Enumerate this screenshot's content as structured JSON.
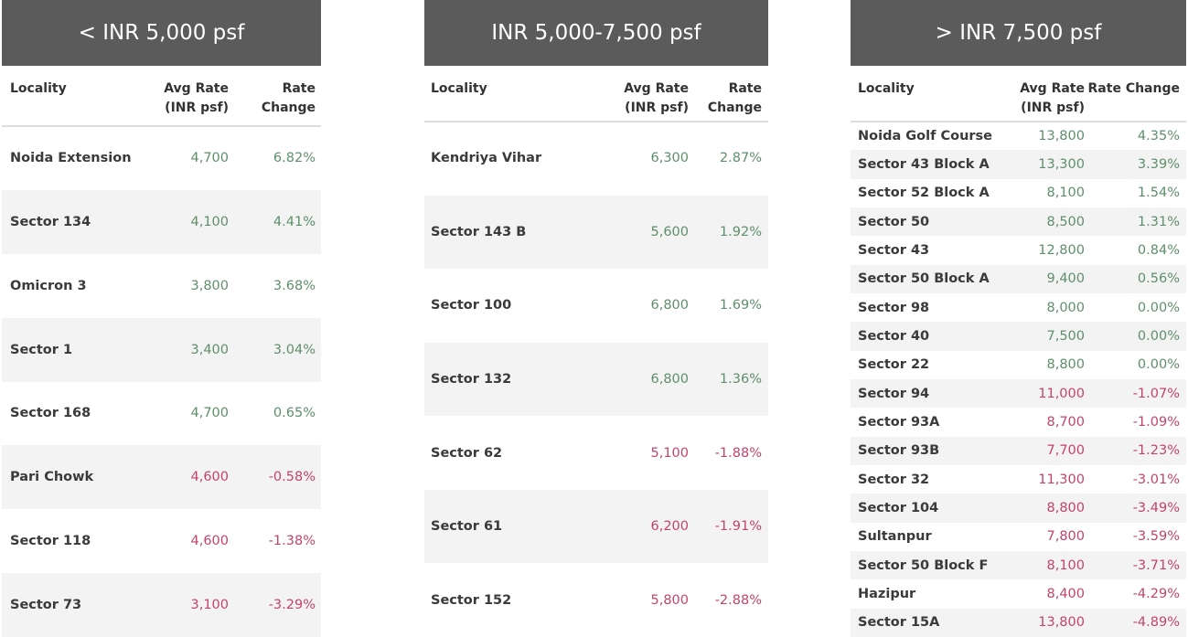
{
  "colors": {
    "positive": "#5e8f6a",
    "negative": "#c2446a",
    "header_bg": "#5b5b5b"
  },
  "columns": {
    "locality": "Locality",
    "avg_rate": "Avg Rate",
    "avg_rate_unit": "(INR psf)",
    "rate_change": "Rate",
    "rate_change_2": "Change",
    "rate_change_full": "Rate Change"
  },
  "panels": [
    {
      "title": "< INR 5,000 psf",
      "rows": [
        {
          "locality": "Noida Extension",
          "avg_rate": "4,700",
          "change": "6.82%"
        },
        {
          "locality": "Sector 134",
          "avg_rate": "4,100",
          "change": "4.41%"
        },
        {
          "locality": "Omicron 3",
          "avg_rate": "3,800",
          "change": "3.68%"
        },
        {
          "locality": "Sector 1",
          "avg_rate": "3,400",
          "change": "3.04%"
        },
        {
          "locality": "Sector 168",
          "avg_rate": "4,700",
          "change": "0.65%"
        },
        {
          "locality": "Pari Chowk",
          "avg_rate": "4,600",
          "change": "-0.58%"
        },
        {
          "locality": "Sector 118",
          "avg_rate": "4,600",
          "change": "-1.38%"
        },
        {
          "locality": "Sector 73",
          "avg_rate": "3,100",
          "change": "-3.29%"
        }
      ]
    },
    {
      "title": "INR 5,000-7,500 psf",
      "rows": [
        {
          "locality": "Kendriya Vihar",
          "avg_rate": "6,300",
          "change": "2.87%"
        },
        {
          "locality": "Sector 143 B",
          "avg_rate": "5,600",
          "change": "1.92%"
        },
        {
          "locality": "Sector 100",
          "avg_rate": "6,800",
          "change": "1.69%"
        },
        {
          "locality": "Sector 132",
          "avg_rate": "6,800",
          "change": "1.36%"
        },
        {
          "locality": "Sector 62",
          "avg_rate": "5,100",
          "change": "-1.88%"
        },
        {
          "locality": "Sector 61",
          "avg_rate": "6,200",
          "change": "-1.91%"
        },
        {
          "locality": "Sector 152",
          "avg_rate": "5,800",
          "change": "-2.88%"
        }
      ]
    },
    {
      "title": "> INR 7,500 psf",
      "rows": [
        {
          "locality": "Noida Golf Course",
          "avg_rate": "13,800",
          "change": "4.35%"
        },
        {
          "locality": "Sector 43 Block A",
          "avg_rate": "13,300",
          "change": "3.39%"
        },
        {
          "locality": "Sector 52 Block A",
          "avg_rate": "8,100",
          "change": "1.54%"
        },
        {
          "locality": "Sector 50",
          "avg_rate": "8,500",
          "change": "1.31%"
        },
        {
          "locality": "Sector 43",
          "avg_rate": "12,800",
          "change": "0.84%"
        },
        {
          "locality": "Sector 50 Block A",
          "avg_rate": "9,400",
          "change": "0.56%"
        },
        {
          "locality": "Sector 98",
          "avg_rate": "8,000",
          "change": "0.00%"
        },
        {
          "locality": "Sector 40",
          "avg_rate": "7,500",
          "change": "0.00%"
        },
        {
          "locality": "Sector 22",
          "avg_rate": "8,800",
          "change": "0.00%"
        },
        {
          "locality": "Sector 94",
          "avg_rate": "11,000",
          "change": "-1.07%"
        },
        {
          "locality": "Sector 93A",
          "avg_rate": "8,700",
          "change": "-1.09%"
        },
        {
          "locality": "Sector 93B",
          "avg_rate": "7,700",
          "change": "-1.23%"
        },
        {
          "locality": "Sector 32",
          "avg_rate": "11,300",
          "change": "-3.01%"
        },
        {
          "locality": "Sector 104",
          "avg_rate": "8,800",
          "change": "-3.49%"
        },
        {
          "locality": "Sultanpur",
          "avg_rate": "7,800",
          "change": "-3.59%"
        },
        {
          "locality": "Sector 50 Block F",
          "avg_rate": "8,100",
          "change": "-3.71%"
        },
        {
          "locality": "Hazipur",
          "avg_rate": "8,400",
          "change": "-4.29%"
        },
        {
          "locality": "Sector 15A",
          "avg_rate": "13,800",
          "change": "-4.89%"
        }
      ]
    }
  ]
}
